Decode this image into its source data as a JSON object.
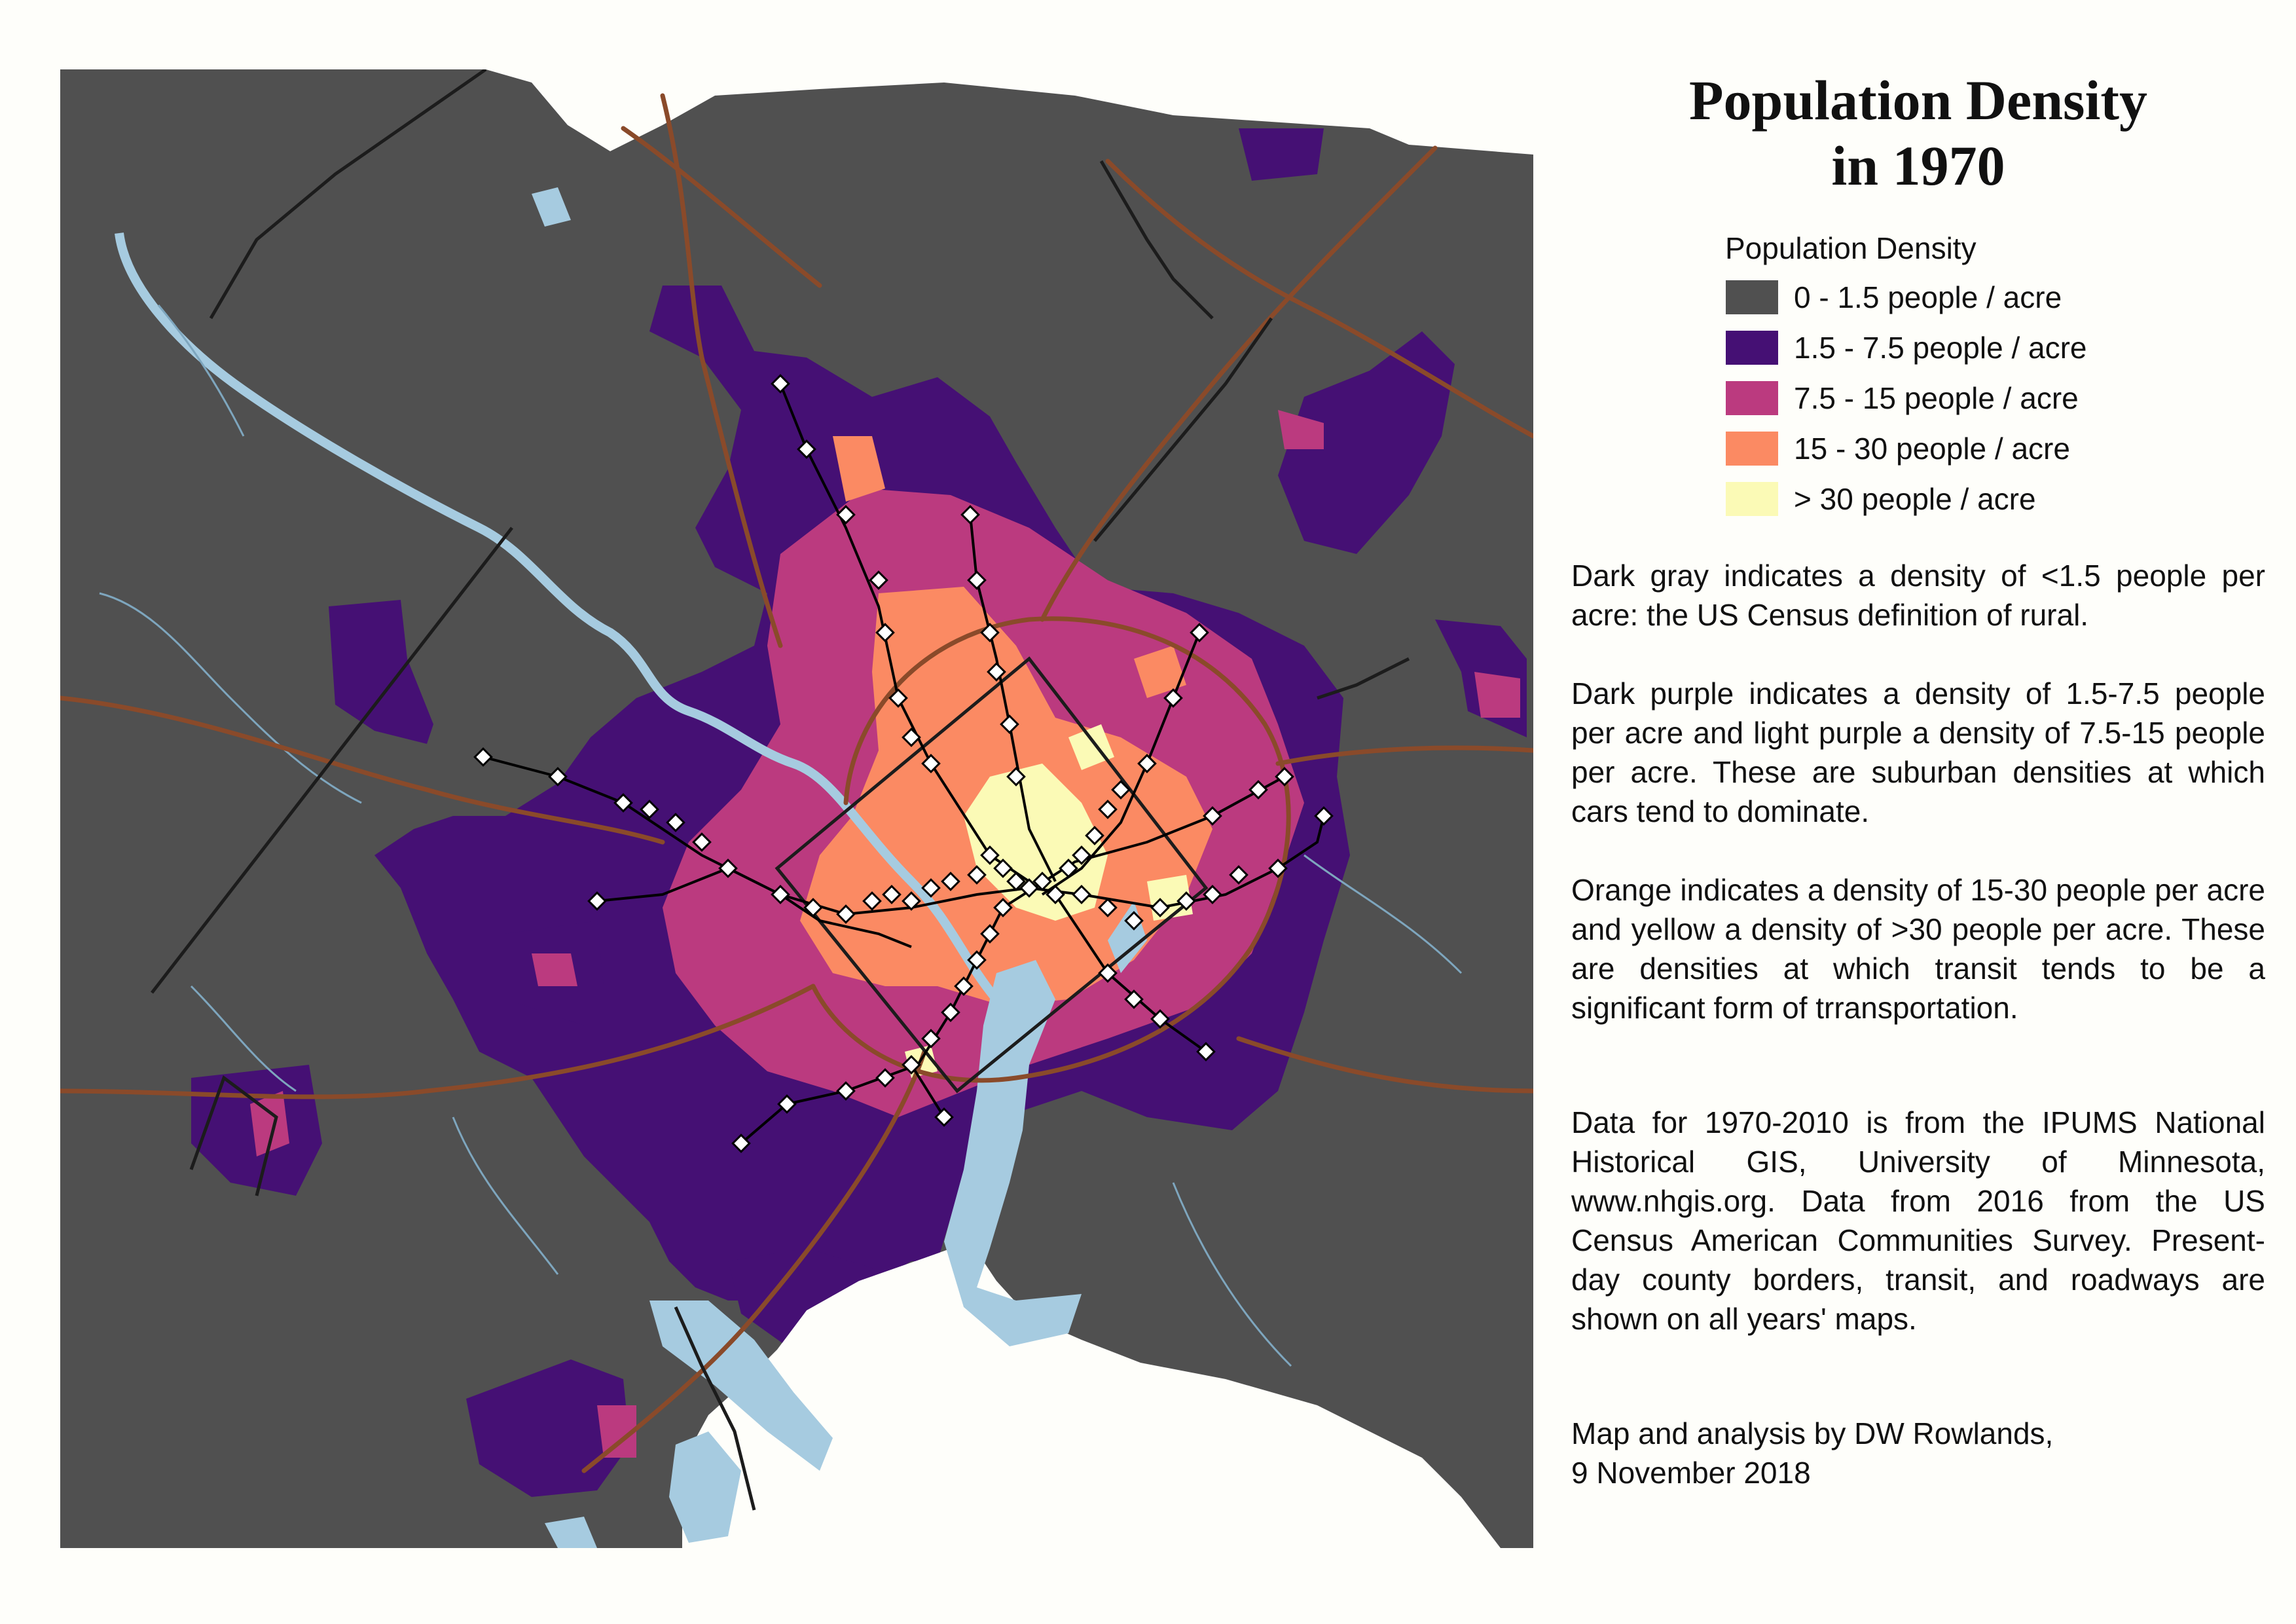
{
  "title_line1": "Population Density",
  "title_line2": "in 1970",
  "legend": {
    "heading": "Population Density",
    "items": [
      {
        "label": "0 - 1.5 people / acre",
        "color": "#505050"
      },
      {
        "label": "1.5 - 7.5 people / acre",
        "color": "#451074"
      },
      {
        "label": "7.5 - 15 people / acre",
        "color": "#bb3a7f"
      },
      {
        "label": "15 - 30 people / acre",
        "color": "#fb8a63"
      },
      {
        "label": "> 30 people / acre",
        "color": "#fbfab6"
      }
    ]
  },
  "notes": [
    "Dark gray indicates a density of <1.5 people per acre: the US Census definition of rural.",
    "Dark purple indicates a density of 1.5-7.5 people per acre and light purple a density of 7.5-15 people per acre.  These are suburban densities at which cars tend to dominate.",
    "Orange indicates a density of 15-30 people per acre and yellow a density of >30 people per acre.  These are densities at which transit tends to be a significant form of trransportation.",
    "Data for 1970-2010 is from the IPUMS National Historical GIS, University of Minnesota, www.nhgis.org.  Data from 2016 from the US Census American Communities Survey. Present-day county borders, transit, and roadways are shown on all years' maps."
  ],
  "credit_line1": "Map and analysis by DW Rowlands,",
  "credit_line2": "9 November 2018",
  "colors": {
    "background": "#fefefa",
    "rural": "#505050",
    "water": "#a6cbe0",
    "roads": "#8a4a2a",
    "streams": "#7ea6be",
    "borders": "#1c1c1c",
    "transit": "#000000",
    "stations": "#ffffff"
  }
}
